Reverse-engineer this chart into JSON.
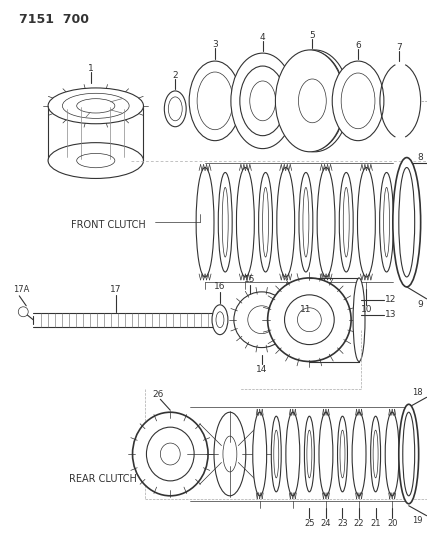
{
  "title": "7151  700",
  "background_color": "#ffffff",
  "line_color": "#333333",
  "front_clutch_label": "FRONT CLUTCH",
  "rear_clutch_label": "REAR CLUTCH"
}
